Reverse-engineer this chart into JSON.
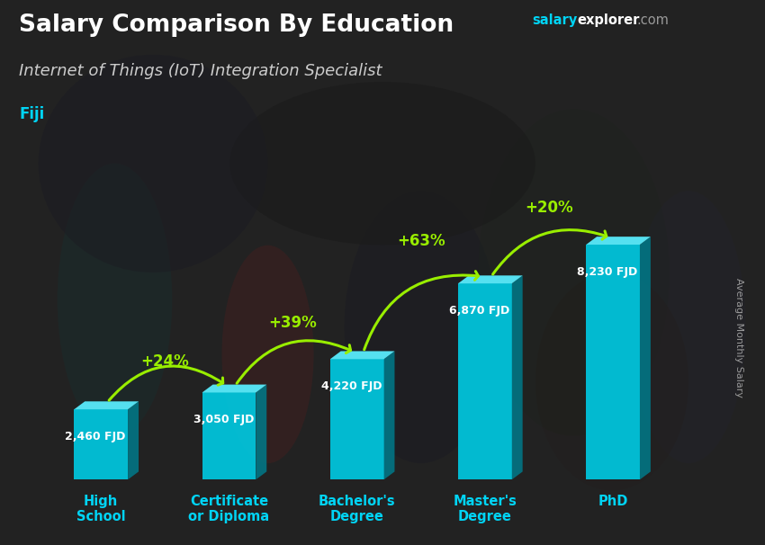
{
  "title": "Salary Comparison By Education",
  "subtitle": "Internet of Things (IoT) Integration Specialist",
  "country": "Fiji",
  "ylabel": "Average Monthly Salary",
  "categories": [
    "High\nSchool",
    "Certificate\nor Diploma",
    "Bachelor's\nDegree",
    "Master's\nDegree",
    "PhD"
  ],
  "values": [
    2460,
    3050,
    4220,
    6870,
    8230
  ],
  "value_labels": [
    "2,460 FJD",
    "3,050 FJD",
    "4,220 FJD",
    "6,870 FJD",
    "8,230 FJD"
  ],
  "pct_labels": [
    "+24%",
    "+39%",
    "+63%",
    "+20%"
  ],
  "bar_color_face": "#00c8e0",
  "bar_color_top": "#55e0f0",
  "bar_color_side": "#007a8a",
  "bg_overlay_color": "#2a2a2a",
  "title_color": "#ffffff",
  "subtitle_color": "#cccccc",
  "country_color": "#00d4f5",
  "category_color": "#00d4f5",
  "value_label_color": "#ffffff",
  "pct_color": "#99ee00",
  "ylabel_color": "#999999",
  "site_salary_color": "#00d4f5",
  "site_explorer_color": "#ffffff",
  "site_com_color": "#999999",
  "ylim_max": 10000,
  "figsize": [
    8.5,
    6.06
  ],
  "dpi": 100
}
